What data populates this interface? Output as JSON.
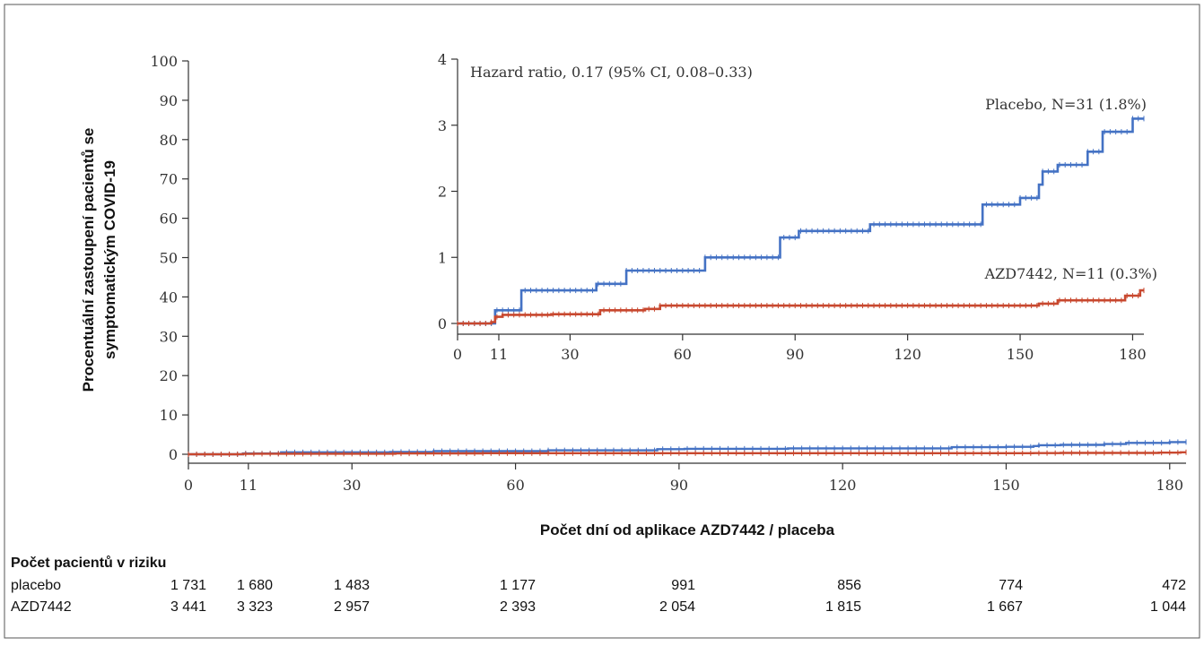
{
  "chart_data": [
    {
      "type": "line",
      "xlabel": "Počet dní od aplikace AZD7442 / placeba",
      "ylabel": "Procentuální zastoupení pacientů se symptomatickým COVID-19",
      "xlim": [
        0,
        183
      ],
      "ylim": [
        0,
        100
      ],
      "x_ticks": [
        0,
        11,
        30,
        60,
        90,
        120,
        150,
        180
      ],
      "y_ticks": [
        0,
        10,
        20,
        30,
        40,
        50,
        60,
        70,
        80,
        90,
        100
      ],
      "series": [
        {
          "name": "Placebo",
          "color": "#4472c4",
          "x": [
            0,
            10,
            17,
            33,
            37,
            45,
            60,
            66,
            80,
            86,
            91,
            110,
            135,
            140,
            150,
            153,
            155,
            156,
            160,
            165,
            168,
            172,
            178,
            180,
            182,
            183
          ],
          "y": [
            0,
            0.2,
            0.5,
            0.5,
            0.6,
            0.8,
            0.8,
            1.0,
            1.0,
            1.3,
            1.4,
            1.5,
            1.5,
            1.8,
            1.9,
            1.9,
            2.1,
            2.3,
            2.4,
            2.4,
            2.6,
            2.9,
            2.9,
            3.1,
            3.1,
            3.1
          ]
        },
        {
          "name": "AZD7442",
          "color": "#c8482f",
          "x": [
            0,
            9,
            10,
            12,
            25,
            38,
            50,
            54,
            100,
            120,
            140,
            150,
            155,
            160,
            175,
            178,
            182,
            183
          ],
          "y": [
            0,
            0.02,
            0.1,
            0.13,
            0.14,
            0.2,
            0.22,
            0.27,
            0.27,
            0.27,
            0.27,
            0.27,
            0.3,
            0.35,
            0.35,
            0.42,
            0.5,
            0.5
          ]
        }
      ]
    },
    {
      "type": "line",
      "annotation": "Hazard ratio, 0.17 (95% CI, 0.08–0.33)",
      "xlim": [
        0,
        183
      ],
      "ylim": [
        0,
        4
      ],
      "x_ticks": [
        0,
        11,
        30,
        60,
        90,
        120,
        150,
        180
      ],
      "y_ticks": [
        0,
        1,
        2,
        3,
        4
      ],
      "series_labels": [
        "Placebo, N=31 (1.8%)",
        "AZD7442, N=11 (0.3%)"
      ],
      "series_ref": "same data as main chart series"
    }
  ],
  "risk_table": {
    "title": "Počet pacientů v riziku",
    "rows": [
      {
        "label": "placebo",
        "values": [
          "1 731",
          "1 680",
          "1 483",
          "1 177",
          "991",
          "856",
          "774",
          "472"
        ]
      },
      {
        "label": "AZD7442",
        "values": [
          "3 441",
          "3 323",
          "2 957",
          "2 393",
          "2 054",
          "1 815",
          "1 667",
          "1 044"
        ]
      }
    ]
  }
}
